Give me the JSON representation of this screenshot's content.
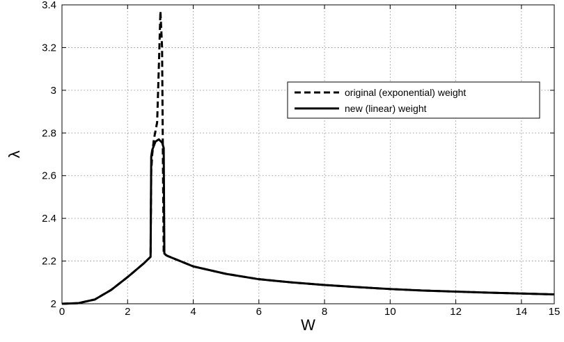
{
  "chart_data": {
    "type": "line",
    "title": "",
    "xlabel": "W",
    "ylabel": "λ",
    "xlim": [
      0,
      15
    ],
    "ylim": [
      2,
      3.4
    ],
    "grid": true,
    "legend_position": "right",
    "xticks": [
      0,
      2,
      4,
      6,
      8,
      10,
      12,
      14,
      15
    ],
    "yticks": [
      2,
      2.2,
      2.4,
      2.6,
      2.8,
      3,
      3.2,
      3.4
    ],
    "xtick_labels": [
      "0",
      "2",
      "4",
      "6",
      "8",
      "10",
      "12",
      "14",
      "15"
    ],
    "ytick_labels": [
      "2",
      "2.2",
      "2.4",
      "2.6",
      "2.8",
      "3",
      "3.2",
      "3.4"
    ],
    "series": [
      {
        "name": "original (exponential) weight",
        "style": "dashed",
        "color": "#000000",
        "x": [
          0,
          0.5,
          1,
          1.5,
          2,
          2.5,
          2.7,
          2.72,
          2.75,
          2.8,
          2.9,
          2.95,
          3.0,
          3.05,
          3.08,
          3.1,
          3.2,
          4,
          5,
          6,
          7,
          8,
          9,
          10,
          11,
          12,
          13,
          14,
          15
        ],
        "y": [
          2.0,
          2.003,
          2.02,
          2.065,
          2.125,
          2.19,
          2.22,
          2.62,
          2.7,
          2.77,
          2.85,
          3.1,
          3.37,
          3.2,
          2.6,
          2.235,
          2.225,
          2.175,
          2.14,
          2.115,
          2.1,
          2.088,
          2.078,
          2.069,
          2.062,
          2.057,
          2.052,
          2.048,
          2.044
        ]
      },
      {
        "name": "new (linear) weight",
        "style": "solid",
        "color": "#000000",
        "x": [
          0,
          0.5,
          1,
          1.5,
          2,
          2.5,
          2.7,
          2.72,
          2.75,
          2.85,
          2.95,
          3.05,
          3.1,
          3.12,
          3.2,
          4,
          5,
          6,
          7,
          8,
          9,
          10,
          11,
          12,
          13,
          14,
          15
        ],
        "y": [
          2.0,
          2.003,
          2.02,
          2.065,
          2.125,
          2.19,
          2.22,
          2.69,
          2.72,
          2.76,
          2.77,
          2.755,
          2.73,
          2.235,
          2.225,
          2.175,
          2.14,
          2.115,
          2.1,
          2.088,
          2.078,
          2.069,
          2.062,
          2.057,
          2.052,
          2.048,
          2.044
        ]
      }
    ]
  }
}
